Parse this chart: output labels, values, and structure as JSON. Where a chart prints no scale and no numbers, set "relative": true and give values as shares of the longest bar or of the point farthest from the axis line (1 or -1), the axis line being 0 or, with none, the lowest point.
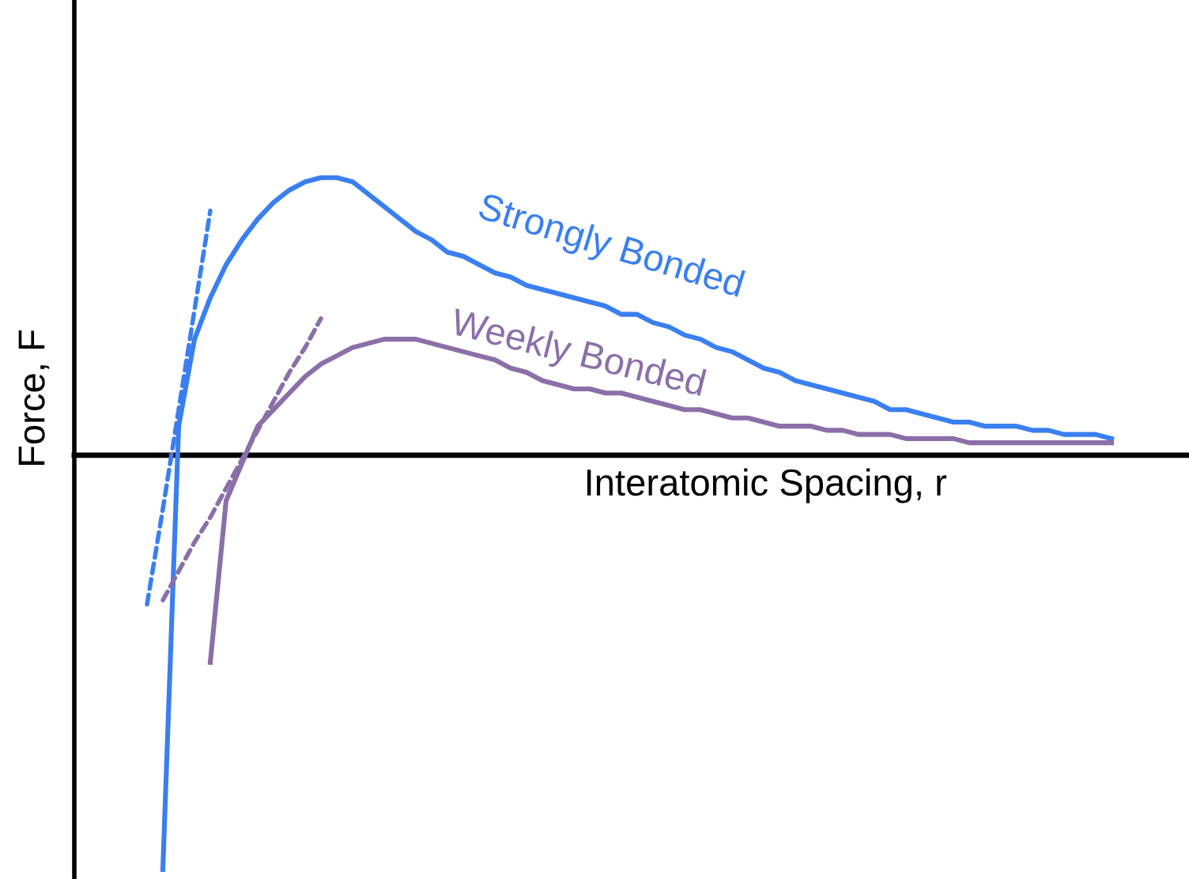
{
  "chart_data": {
    "type": "line",
    "relative": true,
    "xlabel": "Interatomic Spacing, r",
    "ylabel": "Force, F",
    "categories": [
      null,
      null,
      null,
      null,
      null,
      null,
      null,
      null,
      null,
      null,
      null,
      null,
      null,
      null,
      null,
      null,
      null,
      null,
      null,
      null,
      null,
      null,
      null,
      null,
      null,
      null,
      null,
      null,
      null,
      null,
      null,
      null,
      null,
      null,
      null,
      null,
      null,
      null,
      null,
      null,
      null,
      null,
      null,
      null,
      null,
      null,
      null,
      null,
      null,
      null,
      null,
      null,
      null,
      null,
      null,
      null,
      null,
      null,
      null,
      null,
      null,
      null,
      null
    ],
    "series": [
      {
        "name": "Strongly Bonded",
        "color": "#3a7ff0",
        "line_style": "solid",
        "values": [
          null,
          null,
          -1.0,
          0.07,
          0.28,
          0.38,
          0.46,
          0.52,
          0.57,
          0.61,
          0.64,
          0.66,
          0.67,
          0.67,
          0.66,
          0.63,
          0.6,
          0.57,
          0.54,
          0.52,
          0.49,
          0.48,
          0.46,
          0.44,
          0.43,
          0.41,
          0.4,
          0.39,
          0.38,
          0.37,
          0.36,
          0.34,
          0.34,
          0.32,
          0.31,
          0.29,
          0.28,
          0.26,
          0.25,
          0.23,
          0.21,
          0.2,
          0.18,
          0.17,
          0.16,
          0.15,
          0.14,
          0.13,
          0.11,
          0.11,
          0.1,
          0.09,
          0.08,
          0.08,
          0.07,
          0.07,
          0.07,
          0.06,
          0.06,
          0.05,
          0.05,
          0.05,
          0.04
        ]
      },
      {
        "name": "Weekly Bonded",
        "color": "#8a6fa8",
        "line_style": "solid",
        "values": [
          null,
          null,
          null,
          null,
          null,
          -0.5,
          -0.11,
          -0.02,
          0.07,
          0.11,
          0.15,
          0.19,
          0.22,
          0.24,
          0.26,
          0.27,
          0.28,
          0.28,
          0.28,
          0.27,
          0.26,
          0.25,
          0.24,
          0.23,
          0.21,
          0.2,
          0.18,
          0.17,
          0.16,
          0.16,
          0.15,
          0.15,
          0.14,
          0.13,
          0.12,
          0.11,
          0.11,
          0.1,
          0.09,
          0.09,
          0.08,
          0.07,
          0.07,
          0.07,
          0.06,
          0.06,
          0.05,
          0.05,
          0.05,
          0.04,
          0.04,
          0.04,
          0.04,
          0.03,
          0.03,
          0.03,
          0.03,
          0.03,
          0.03,
          0.03,
          0.03,
          0.03,
          0.03
        ]
      },
      {
        "type": "line",
        "color": "#3a7ff0",
        "line_style": "dashed",
        "values": [
          null,
          -0.36,
          -0.13,
          0.11,
          0.35,
          0.59,
          null,
          null,
          null,
          null,
          null,
          null,
          null,
          null,
          null,
          null,
          null,
          null,
          null,
          null,
          null,
          null,
          null,
          null,
          null,
          null,
          null,
          null,
          null,
          null,
          null,
          null,
          null,
          null,
          null,
          null,
          null,
          null,
          null,
          null,
          null,
          null,
          null,
          null,
          null,
          null,
          null,
          null,
          null,
          null,
          null,
          null,
          null,
          null,
          null,
          null,
          null,
          null,
          null,
          null,
          null,
          null,
          null
        ]
      },
      {
        "type": "line",
        "color": "#8a6fa8",
        "line_style": "dashed",
        "values": [
          null,
          null,
          -0.35,
          -0.28,
          -0.21,
          -0.15,
          -0.08,
          -0.01,
          0.06,
          0.13,
          0.2,
          0.26,
          0.33,
          null,
          null,
          null,
          null,
          null,
          null,
          null,
          null,
          null,
          null,
          null,
          null,
          null,
          null,
          null,
          null,
          null,
          null,
          null,
          null,
          null,
          null,
          null,
          null,
          null,
          null,
          null,
          null,
          null,
          null,
          null,
          null,
          null,
          null,
          null,
          null,
          null,
          null,
          null,
          null,
          null,
          null,
          null,
          null,
          null,
          null,
          null,
          null,
          null,
          null
        ]
      }
    ]
  }
}
